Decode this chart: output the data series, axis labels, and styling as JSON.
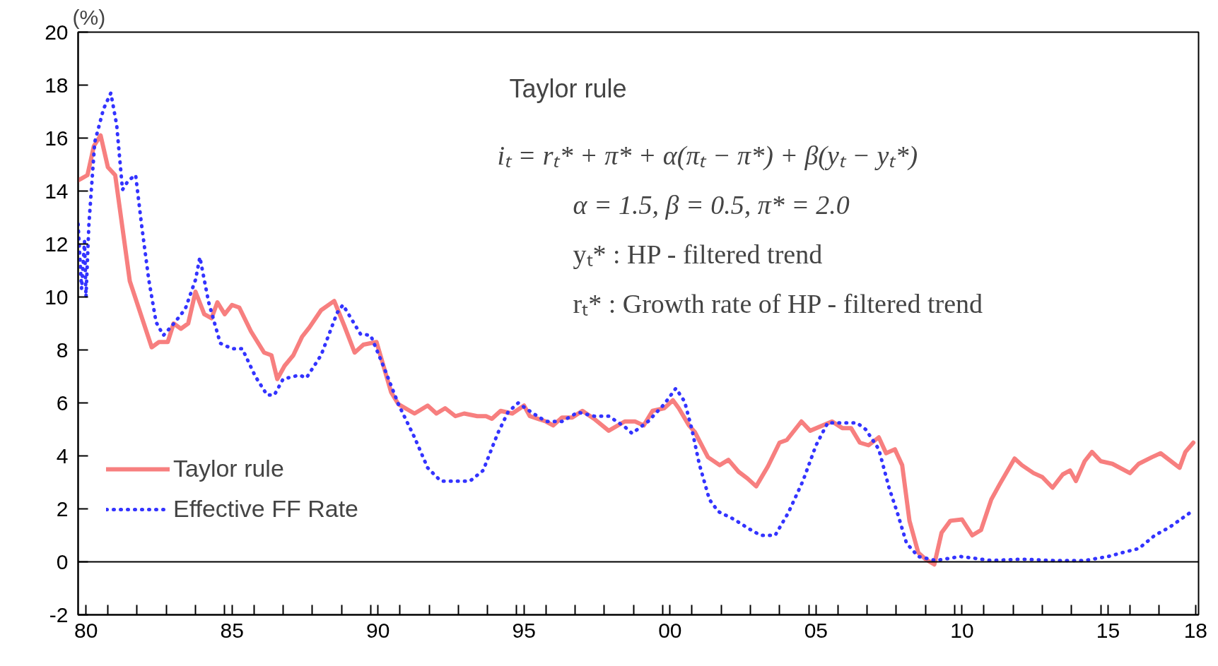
{
  "chart_data": {
    "type": "line",
    "ylabel": "(%)",
    "annotations": [
      "Taylor rule",
      "iₜ = rₜ* + π* + α(πₜ − π*) + β(yₜ − yₜ*)",
      "α = 1.5,    β = 0.5,    π* = 2.0",
      "yₜ* :    HP - filtered trend",
      "rₜ* :    Growth rate of HP - filtered trend"
    ],
    "series": [
      {
        "name": "Taylor rule",
        "color": "#f77f7f",
        "line_style": "solid",
        "x": [
          1979.73,
          1980.05,
          1980.27,
          1980.5,
          1980.75,
          1981.0,
          1981.5,
          1982.25,
          1982.5,
          1982.8,
          1983.0,
          1983.25,
          1983.5,
          1983.75,
          1984.05,
          1984.3,
          1984.5,
          1984.75,
          1985.0,
          1985.25,
          1985.65,
          1986.1,
          1986.35,
          1986.55,
          1986.8,
          1987.1,
          1987.4,
          1987.65,
          1988.05,
          1988.5,
          1988.85,
          1989.2,
          1989.5,
          1989.95,
          1990.45,
          1990.7,
          1991.25,
          1991.7,
          1992.0,
          1992.3,
          1992.65,
          1992.95,
          1993.4,
          1993.7,
          1993.9,
          1994.2,
          1994.6,
          1995.0,
          1995.2,
          1995.75,
          1996.0,
          1996.3,
          1996.65,
          1997.0,
          1997.4,
          1997.9,
          1998.45,
          1998.8,
          1999.1,
          1999.4,
          1999.8,
          2000.1,
          2000.3,
          2000.65,
          2000.85,
          2001.3,
          2001.7,
          2002.0,
          2002.35,
          2002.65,
          2002.95,
          2003.35,
          2003.75,
          2004.0,
          2004.5,
          2004.8,
          2005.55,
          2005.9,
          2006.2,
          2006.5,
          2006.8,
          2007.15,
          2007.4,
          2007.7,
          2007.95,
          2008.2,
          2008.5,
          2008.75,
          2009.05,
          2009.3,
          2009.6,
          2010.0,
          2010.35,
          2010.65,
          2011.0,
          2011.3,
          2011.8,
          2012.05,
          2012.45,
          2012.75,
          2013.1,
          2013.45,
          2013.7,
          2013.9,
          2014.2,
          2014.45,
          2014.75,
          2015.15,
          2015.75,
          2016.05,
          2016.5,
          2016.8,
          2017.45,
          2017.65,
          2017.92
        ],
        "values": [
          14.4,
          14.6,
          15.7,
          16.1,
          14.9,
          14.6,
          10.6,
          8.1,
          8.3,
          8.3,
          9.0,
          8.8,
          9.0,
          10.2,
          9.35,
          9.2,
          9.8,
          9.35,
          9.7,
          9.6,
          8.7,
          7.9,
          7.8,
          6.9,
          7.4,
          7.8,
          8.5,
          8.85,
          9.5,
          9.85,
          8.9,
          7.9,
          8.2,
          8.3,
          6.4,
          5.95,
          5.6,
          5.9,
          5.6,
          5.8,
          5.5,
          5.6,
          5.5,
          5.5,
          5.4,
          5.7,
          5.6,
          5.9,
          5.5,
          5.3,
          5.15,
          5.45,
          5.45,
          5.7,
          5.4,
          4.95,
          5.3,
          5.3,
          5.15,
          5.7,
          5.8,
          6.1,
          5.8,
          5.15,
          4.9,
          3.95,
          3.65,
          3.85,
          3.4,
          3.15,
          2.85,
          3.6,
          4.5,
          4.6,
          5.3,
          4.95,
          5.3,
          5.05,
          5.05,
          4.5,
          4.4,
          4.7,
          4.1,
          4.25,
          3.65,
          1.55,
          0.35,
          0.1,
          -0.1,
          1.1,
          1.55,
          1.6,
          1.0,
          1.2,
          2.35,
          2.95,
          3.9,
          3.65,
          3.35,
          3.2,
          2.8,
          3.3,
          3.45,
          3.05,
          3.8,
          4.15,
          3.8,
          3.7,
          3.35,
          3.7,
          3.95,
          4.1,
          3.55,
          4.15,
          4.5
        ]
      },
      {
        "name": "Effective FF Rate",
        "color": "#3333ff",
        "line_style": "dotted",
        "x": [
          1979.73,
          1979.85,
          1979.95,
          1980.0,
          1980.1,
          1980.3,
          1980.6,
          1980.85,
          1981.05,
          1981.25,
          1981.45,
          1981.7,
          1981.9,
          1982.15,
          1982.4,
          1982.65,
          1983.05,
          1983.4,
          1983.75,
          1983.9,
          1984.2,
          1984.6,
          1985.0,
          1985.35,
          1985.8,
          1986.2,
          1986.45,
          1986.75,
          1987.3,
          1987.55,
          1988.05,
          1988.6,
          1988.8,
          1989.4,
          1989.75,
          1990.2,
          1990.7,
          1991.25,
          1991.7,
          1992.15,
          1992.85,
          1993.15,
          1993.6,
          1994.1,
          1994.45,
          1994.8,
          1995.25,
          1995.75,
          1996.3,
          1996.85,
          1997.4,
          1997.9,
          1998.45,
          1998.7,
          1999.25,
          1999.8,
          2000.2,
          2000.5,
          2000.75,
          2001.0,
          2001.35,
          2001.65,
          2002.2,
          2002.7,
          2003.1,
          2003.6,
          2004.05,
          2004.55,
          2005.0,
          2005.4,
          2005.8,
          2006.4,
          2006.7,
          2007.15,
          2007.5,
          2007.8,
          2008.1,
          2008.5,
          2009.1,
          2009.95,
          2011.0,
          2012.05,
          2013.1,
          2014.2,
          2015.0,
          2015.5,
          2016.05,
          2016.6,
          2017.1,
          2017.8
        ],
        "values": [
          12.75,
          10.3,
          12.1,
          10.0,
          12.75,
          15.85,
          17.1,
          17.7,
          16.5,
          14.05,
          14.4,
          14.6,
          12.75,
          10.65,
          9.05,
          8.55,
          9.05,
          9.55,
          10.65,
          11.5,
          9.8,
          8.25,
          8.05,
          8.05,
          7.0,
          6.3,
          6.3,
          6.9,
          7.05,
          6.95,
          7.8,
          9.4,
          9.7,
          8.6,
          8.55,
          7.35,
          5.95,
          4.7,
          3.55,
          3.05,
          3.05,
          3.05,
          3.45,
          4.85,
          5.65,
          6.0,
          5.65,
          5.3,
          5.3,
          5.65,
          5.5,
          5.5,
          5.1,
          4.85,
          5.3,
          5.95,
          6.55,
          6.05,
          5.0,
          3.7,
          2.35,
          1.9,
          1.6,
          1.25,
          1.0,
          1.0,
          1.85,
          3.05,
          4.4,
          5.25,
          5.25,
          5.25,
          5.0,
          4.25,
          2.8,
          1.8,
          0.7,
          0.2,
          0.05,
          0.2,
          0.05,
          0.1,
          0.05,
          0.05,
          0.2,
          0.35,
          0.5,
          1.0,
          1.3,
          1.85
        ]
      }
    ],
    "xlim": [
      1979.73,
      2018.1
    ],
    "ylim": [
      -2,
      20
    ],
    "xticks": [
      {
        "value": 1980,
        "label": "80"
      },
      {
        "value": 1985,
        "label": "85"
      },
      {
        "value": 1990,
        "label": "90"
      },
      {
        "value": 1995,
        "label": "95"
      },
      {
        "value": 2000,
        "label": "00"
      },
      {
        "value": 2005,
        "label": "05"
      },
      {
        "value": 2010,
        "label": "10"
      },
      {
        "value": 2015,
        "label": "15"
      },
      {
        "value": 2018,
        "label": "18"
      },
      {
        "value": 1980.75,
        "label": null
      },
      {
        "value": 1981.75,
        "label": null
      },
      {
        "value": 1982.75,
        "label": null
      },
      {
        "value": 1983.75,
        "label": null
      },
      {
        "value": 1984.75,
        "label": null
      },
      {
        "value": 1985.75,
        "label": null
      },
      {
        "value": 1986.75,
        "label": null
      },
      {
        "value": 1987.75,
        "label": null
      },
      {
        "value": 1988.75,
        "label": null
      },
      {
        "value": 1989.75,
        "label": null
      },
      {
        "value": 1990.75,
        "label": null
      },
      {
        "value": 1991.75,
        "label": null
      },
      {
        "value": 1992.75,
        "label": null
      },
      {
        "value": 1993.75,
        "label": null
      },
      {
        "value": 1994.75,
        "label": null
      },
      {
        "value": 1995.75,
        "label": null
      },
      {
        "value": 1996.75,
        "label": null
      },
      {
        "value": 1997.75,
        "label": null
      },
      {
        "value": 1998.75,
        "label": null
      },
      {
        "value": 1999.75,
        "label": null
      },
      {
        "value": 2000.75,
        "label": null
      },
      {
        "value": 2001.75,
        "label": null
      },
      {
        "value": 2002.75,
        "label": null
      },
      {
        "value": 2003.75,
        "label": null
      },
      {
        "value": 2004.75,
        "label": null
      },
      {
        "value": 2005.75,
        "label": null
      },
      {
        "value": 2006.75,
        "label": null
      },
      {
        "value": 2007.75,
        "label": null
      },
      {
        "value": 2008.75,
        "label": null
      },
      {
        "value": 2009.75,
        "label": null
      },
      {
        "value": 2010.75,
        "label": null
      },
      {
        "value": 2011.75,
        "label": null
      },
      {
        "value": 2012.75,
        "label": null
      },
      {
        "value": 2013.75,
        "label": null
      },
      {
        "value": 2014.75,
        "label": null
      },
      {
        "value": 2015.75,
        "label": null
      },
      {
        "value": 2016.75,
        "label": null
      }
    ],
    "yticks": [
      -2,
      0,
      2,
      4,
      6,
      8,
      10,
      12,
      14,
      16,
      18,
      20
    ],
    "ref_lines": [
      {
        "axis": "y",
        "value": 0,
        "color": "#000000",
        "line_style": "solid"
      }
    ],
    "grid": false,
    "legend": "bottom left",
    "marker": "none"
  }
}
